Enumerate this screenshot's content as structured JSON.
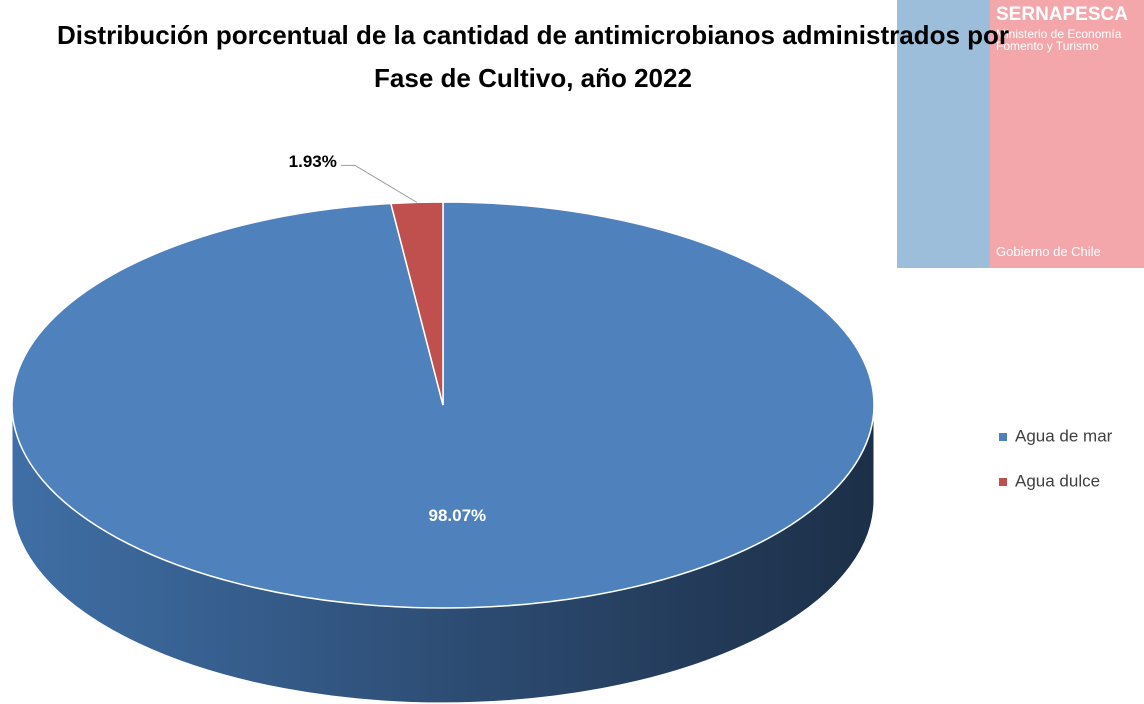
{
  "chart_data": {
    "type": "pie3d",
    "title": "Distribución porcentual de la cantidad de antimicrobianos administrados por Fase de Cultivo, año 2022",
    "categories": [
      "Agua de mar",
      "Agua dulce"
    ],
    "values": [
      98.07,
      1.93
    ],
    "value_labels": [
      "98.07%",
      "1.93%"
    ],
    "colors": [
      "#4f81bd",
      "#c0504d"
    ],
    "legend": "right"
  },
  "logo": {
    "name": "SERNAPESCA",
    "ministry": "Ministerio de Economía Fomento y Turismo",
    "government": "Gobierno de Chile"
  }
}
